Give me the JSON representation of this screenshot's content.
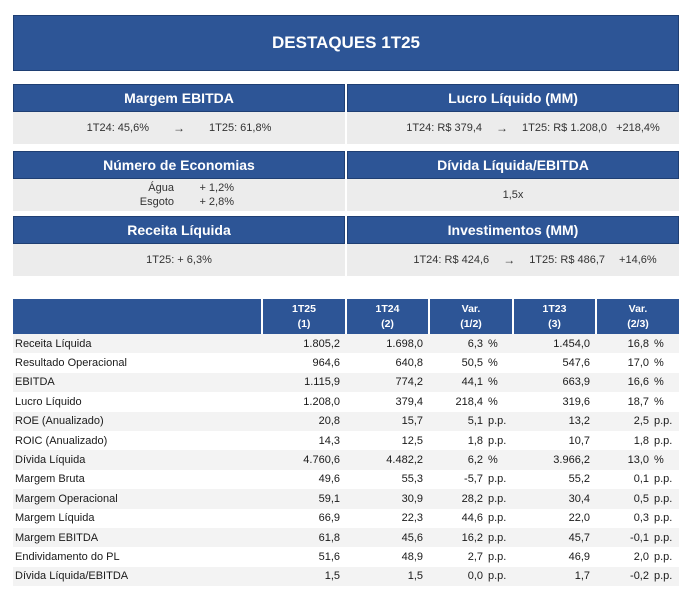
{
  "banner": {
    "title": "DESTAQUES 1T25"
  },
  "cards": {
    "margem_ebitda": {
      "title": "Margem EBITDA",
      "a": "1T24:  45,6%",
      "arrow": "→",
      "b": "1T25:  61,8%"
    },
    "lucro_liquido": {
      "title": "Lucro Líquido (MM)",
      "a": "1T24: R$ 379,4",
      "arrow": "→",
      "b": "1T25: R$ 1.208,0",
      "var": "+218,4%"
    },
    "economias": {
      "title": "Número de Economias",
      "rows": [
        {
          "label": "Água",
          "value": "+ 1,2%"
        },
        {
          "label": "Esgoto",
          "value": "+ 2,8%"
        }
      ]
    },
    "divida_ebitda": {
      "title": "Dívida Líquida/EBITDA",
      "value": "1,5x"
    },
    "receita_liquida": {
      "title": "Receita Líquida",
      "value": "1T25: + 6,3%"
    },
    "investimentos": {
      "title": "Investimentos (MM)",
      "a": "1T24: R$ 424,6",
      "arrow": "→",
      "b": "1T25: R$ 486,7",
      "var": "+14,6%"
    }
  },
  "table": {
    "headers": [
      {
        "l1": "1T25",
        "l2": "(1)"
      },
      {
        "l1": "1T24",
        "l2": "(2)"
      },
      {
        "l1": "Var.",
        "l2": "(1/2)"
      },
      {
        "l1": "1T23",
        "l2": "(3)"
      },
      {
        "l1": "Var.",
        "l2": "(2/3)"
      }
    ],
    "rows": [
      {
        "label": "Receita Líquida",
        "c1": "1.805,2",
        "c2": "1.698,0",
        "v12": "6,3",
        "u12": "%",
        "c3": "1.454,0",
        "v23": "16,8",
        "u23": "%"
      },
      {
        "label": "Resultado Operacional",
        "c1": "964,6",
        "c2": "640,8",
        "v12": "50,5",
        "u12": "%",
        "c3": "547,6",
        "v23": "17,0",
        "u23": "%"
      },
      {
        "label": "EBITDA",
        "c1": "1.115,9",
        "c2": "774,2",
        "v12": "44,1",
        "u12": "%",
        "c3": "663,9",
        "v23": "16,6",
        "u23": "%"
      },
      {
        "label": "Lucro Líquido",
        "c1": "1.208,0",
        "c2": "379,4",
        "v12": "218,4",
        "u12": "%",
        "c3": "319,6",
        "v23": "18,7",
        "u23": "%"
      },
      {
        "label": "ROE (Anualizado)",
        "c1": "20,8",
        "c2": "15,7",
        "v12": "5,1",
        "u12": "p.p.",
        "c3": "13,2",
        "v23": "2,5",
        "u23": "p.p."
      },
      {
        "label": "ROIC (Anualizado)",
        "c1": "14,3",
        "c2": "12,5",
        "v12": "1,8",
        "u12": "p.p.",
        "c3": "10,7",
        "v23": "1,8",
        "u23": "p.p."
      },
      {
        "label": "Dívida Líquida",
        "c1": "4.760,6",
        "c2": "4.482,2",
        "v12": "6,2",
        "u12": "%",
        "c3": "3.966,2",
        "v23": "13,0",
        "u23": "%"
      },
      {
        "label": "Margem Bruta",
        "c1": "49,6",
        "c2": "55,3",
        "v12": "-5,7",
        "u12": "p.p.",
        "c3": "55,2",
        "v23": "0,1",
        "u23": "p.p."
      },
      {
        "label": "Margem Operacional",
        "c1": "59,1",
        "c2": "30,9",
        "v12": "28,2",
        "u12": "p.p.",
        "c3": "30,4",
        "v23": "0,5",
        "u23": "p.p."
      },
      {
        "label": "Margem Líquida",
        "c1": "66,9",
        "c2": "22,3",
        "v12": "44,6",
        "u12": "p.p.",
        "c3": "22,0",
        "v23": "0,3",
        "u23": "p.p."
      },
      {
        "label": "Margem EBITDA",
        "c1": "61,8",
        "c2": "45,6",
        "v12": "16,2",
        "u12": "p.p.",
        "c3": "45,7",
        "v23": "-0,1",
        "u23": "p.p."
      },
      {
        "label": "Endividamento do PL",
        "c1": "51,6",
        "c2": "48,9",
        "v12": "2,7",
        "u12": "p.p.",
        "c3": "46,9",
        "v23": "2,0",
        "u23": "p.p."
      },
      {
        "label": "Dívida Líquida/EBITDA",
        "c1": "1,5",
        "c2": "1,5",
        "v12": "0,0",
        "u12": "p.p.",
        "c3": "1,7",
        "v23": "-0,2",
        "u23": "p.p."
      }
    ]
  }
}
